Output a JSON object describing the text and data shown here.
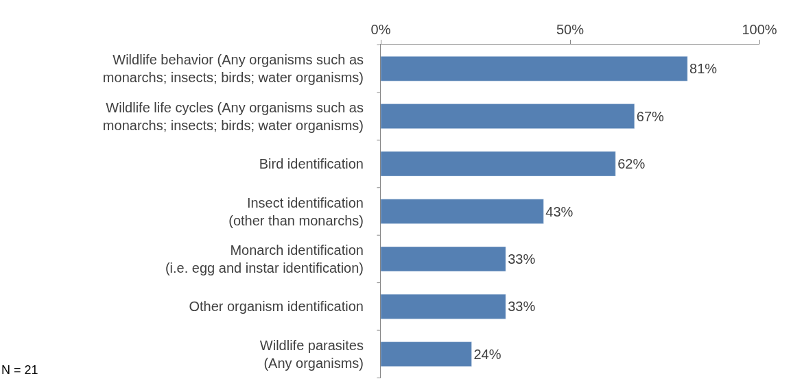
{
  "chart_data": {
    "type": "bar",
    "orientation": "horizontal",
    "categories": [
      "Wildlife behavior (Any organisms such as\nmonarchs; insects; birds; water organisms)",
      "Wildlife life cycles (Any organisms such as\nmonarchs; insects; birds; water organisms)",
      "Bird identification",
      "Insect identification\n(other than monarchs)",
      "Monarch identification\n(i.e. egg and instar identification)",
      "Other organism identification",
      "Wildlife parasites\n(Any organisms)"
    ],
    "values": [
      81,
      67,
      62,
      43,
      33,
      33,
      24
    ],
    "value_labels": [
      "81%",
      "67%",
      "62%",
      "43%",
      "33%",
      "33%",
      "24%"
    ],
    "color": "#5580b3",
    "xlim": [
      0,
      100
    ],
    "xticks": [
      {
        "value": 0,
        "label": "0%"
      },
      {
        "value": 50,
        "label": "50%"
      },
      {
        "value": 100,
        "label": "100%"
      }
    ],
    "annotations": [
      "N = 21"
    ]
  }
}
